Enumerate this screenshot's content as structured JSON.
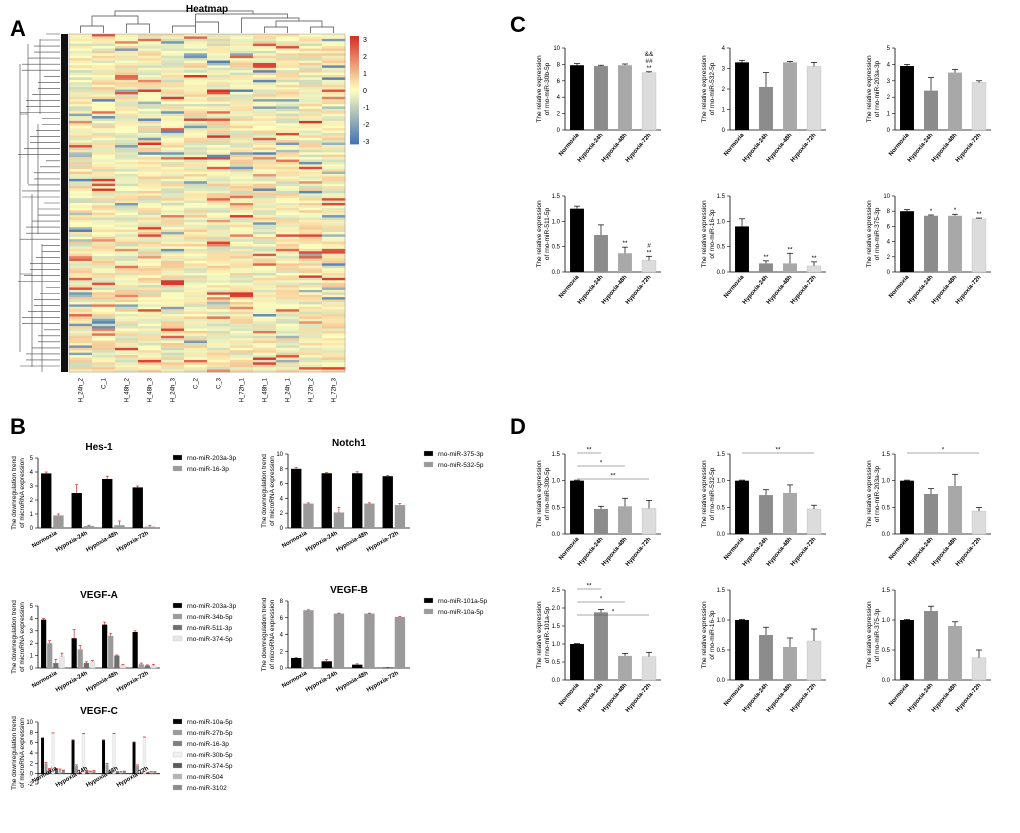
{
  "panel_labels": [
    "A",
    "B",
    "C",
    "D"
  ],
  "x_groups": [
    "Normoxia",
    "Hypoxia-24h",
    "Hypoxia-48h",
    "Hypoxia-72h"
  ],
  "colors": {
    "normoxia": "#000000",
    "h24": "#8c8c8c",
    "h48": "#a8a8a8",
    "h72": "#dcdcdc",
    "error_red": "#d62728",
    "heat_low": "#4575b4",
    "heat_mid": "#ffffbf",
    "heat_high": "#d73027"
  },
  "panel_c_ylabel_prefix": "The relative expression",
  "panel_d_ylabel_prefix": "The relative expression",
  "panel_b_ylabel": [
    "The downregulation trend",
    "of microRNA expression"
  ],
  "chart_data": [
    {
      "id": "A",
      "type": "heatmap",
      "title": "Heatmap",
      "columns": [
        "H_24h_2",
        "C_1",
        "H_48h_2",
        "H_48h_3",
        "H_24h_3",
        "C_2",
        "C_3",
        "H_72h_1",
        "H_48h_1",
        "H_24h_1",
        "H_72h_2",
        "H_72h_3"
      ],
      "colorbar_ticks": [
        "3",
        "2",
        "1",
        "0",
        "-1",
        "-2",
        "-3"
      ],
      "value_range": [
        -3,
        3
      ]
    },
    {
      "id": "B1",
      "type": "bar",
      "title": "Hes-1",
      "ylim": [
        0,
        5
      ],
      "yticks": [
        0,
        1,
        2,
        3,
        4,
        5
      ],
      "categories": [
        "Normoxia",
        "Hypoxia-24h",
        "Hypoxia-48h",
        "Hypoxia-72h"
      ],
      "series": [
        {
          "name": "rno-miR-203a-3p",
          "color": "#000000",
          "values": [
            3.9,
            2.5,
            3.5,
            2.9
          ],
          "errors": [
            0.1,
            0.6,
            0.2,
            0.1
          ]
        },
        {
          "name": "rno-miR-16-3p",
          "color": "#9a9a9a",
          "values": [
            0.9,
            0.15,
            0.2,
            0.1
          ],
          "errors": [
            0.1,
            0.05,
            0.3,
            0.1
          ]
        }
      ]
    },
    {
      "id": "B2",
      "type": "bar",
      "title": "Notch1",
      "ylim": [
        0,
        10
      ],
      "yticks": [
        0,
        2,
        4,
        6,
        8,
        10
      ],
      "categories": [
        "Normoxia",
        "Hypoxia-24h",
        "Hypoxia-48h",
        "Hypoxia-72h"
      ],
      "series": [
        {
          "name": "rno-miR-375-3p",
          "color": "#000000",
          "values": [
            8.0,
            7.4,
            7.4,
            7.0
          ],
          "errors": [
            0.2,
            0.1,
            0.2,
            0.1
          ]
        },
        {
          "name": "rno-miR-532-5p",
          "color": "#9a9a9a",
          "values": [
            3.3,
            2.1,
            3.3,
            3.1
          ],
          "errors": [
            0.1,
            0.7,
            0.1,
            0.2
          ]
        }
      ]
    },
    {
      "id": "B3",
      "type": "bar",
      "title": "VEGF-A",
      "ylim": [
        0,
        5
      ],
      "yticks": [
        0,
        1,
        2,
        3,
        4,
        5
      ],
      "categories": [
        "Normoxia",
        "Hypoxia-24h",
        "Hypoxia-48h",
        "Hypoxia-72h"
      ],
      "series": [
        {
          "name": "rno-miR-203a-3p",
          "color": "#000000",
          "values": [
            3.9,
            2.4,
            3.5,
            2.9
          ],
          "errors": [
            0.1,
            0.7,
            0.2,
            0.1
          ]
        },
        {
          "name": "rno-miR-34b-5p",
          "color": "#9a9a9a",
          "values": [
            2.0,
            1.5,
            2.6,
            0.3
          ],
          "errors": [
            0.2,
            0.3,
            0.2,
            0.1
          ]
        },
        {
          "name": "rno-miR-511-3p",
          "color": "#6e6e6e",
          "values": [
            0.4,
            0.4,
            1.0,
            0.2
          ],
          "errors": [
            0.3,
            0.1,
            0.05,
            0.05
          ]
        },
        {
          "name": "rno-miR-374-5p",
          "color": "#e6e6e6",
          "values": [
            0.9,
            0.5,
            0.2,
            0.2
          ],
          "errors": [
            0.3,
            0.1,
            0.1,
            0.1
          ]
        }
      ]
    },
    {
      "id": "B4",
      "type": "bar",
      "title": "VEGF-B",
      "ylim": [
        0,
        8
      ],
      "yticks": [
        0,
        2,
        4,
        6,
        8
      ],
      "categories": [
        "Normoxia",
        "Hypoxia-24h",
        "Hypoxia-48h",
        "Hypoxia-72h"
      ],
      "series": [
        {
          "name": "rno-miR-101a-5p",
          "color": "#000000",
          "values": [
            1.2,
            0.8,
            0.4,
            0.05
          ],
          "errors": [
            0.05,
            0.2,
            0.1,
            0.02
          ]
        },
        {
          "name": "rno-miR-10a-5p",
          "color": "#9a9a9a",
          "values": [
            6.9,
            6.5,
            6.5,
            6.1
          ],
          "errors": [
            0.05,
            0.05,
            0.05,
            0.05
          ]
        }
      ]
    },
    {
      "id": "B5",
      "type": "bar",
      "title": "VEGF-C",
      "ylim": [
        -2,
        10
      ],
      "yticks": [
        -2,
        0,
        2,
        4,
        6,
        8,
        10
      ],
      "categories": [
        "Normoxia",
        "Hypoxia-24h",
        "Hypoxia-48h",
        "Hypoxia-72h"
      ],
      "series": [
        {
          "name": "rno-miR-10a-5p",
          "color": "#000000",
          "values": [
            6.9,
            6.5,
            6.5,
            6.1
          ],
          "errors": [
            0.05,
            0.05,
            0.05,
            0.05
          ]
        },
        {
          "name": "rno-miR-27b-5p",
          "color": "#9a9a9a",
          "values": [
            2.0,
            1.5,
            1.8,
            1.5
          ],
          "errors": [
            0.2,
            0.2,
            0.2,
            0.2
          ]
        },
        {
          "name": "rno-miR-16-3p",
          "color": "#7d7d7d",
          "values": [
            0.9,
            0.15,
            0.2,
            0.1
          ],
          "errors": [
            0.1,
            0.05,
            0.1,
            0.05
          ]
        },
        {
          "name": "rno-miR-30b-5p",
          "color": "#f0f0f0",
          "values": [
            7.8,
            7.7,
            7.7,
            7.0
          ],
          "errors": [
            0.1,
            0.1,
            0.1,
            0.1
          ]
        },
        {
          "name": "rno-miR-374-5p",
          "color": "#5a5a5a",
          "values": [
            0.9,
            0.5,
            0.3,
            0.2
          ],
          "errors": [
            0.1,
            0.1,
            0.1,
            0.1
          ]
        },
        {
          "name": "rno-miR-504",
          "color": "#b4b4b4",
          "values": [
            0.8,
            0.4,
            0.3,
            0.3
          ],
          "errors": [
            0.1,
            0.1,
            0.1,
            0.1
          ]
        },
        {
          "name": "rno-miR-3102",
          "color": "#8c8c8c",
          "values": [
            0.6,
            0.5,
            0.4,
            0.3
          ],
          "errors": [
            0.1,
            0.1,
            0.1,
            0.1
          ]
        }
      ]
    },
    {
      "id": "C1",
      "type": "bar",
      "ylabel": "of rno-miR-30b-5p",
      "ylim": [
        0,
        10
      ],
      "yticks": [
        0,
        2,
        4,
        6,
        8,
        10
      ],
      "values": [
        7.9,
        7.8,
        7.9,
        7.0
      ],
      "errors": [
        0.2,
        0.1,
        0.15,
        0.1
      ],
      "annotations": [
        "",
        "",
        "",
        "&&\n##\n**"
      ]
    },
    {
      "id": "C2",
      "type": "bar",
      "ylabel": "of rno-miR-532-5p",
      "ylim": [
        0,
        4
      ],
      "yticks": [
        0,
        1,
        2,
        3,
        4
      ],
      "values": [
        3.3,
        2.1,
        3.3,
        3.1
      ],
      "errors": [
        0.1,
        0.7,
        0.05,
        0.2
      ],
      "annotations": [
        "",
        "",
        "",
        ""
      ]
    },
    {
      "id": "C3",
      "type": "bar",
      "ylabel": "of rno-miR-203a-3p",
      "ylim": [
        0,
        5
      ],
      "yticks": [
        0,
        1,
        2,
        3,
        4,
        5
      ],
      "values": [
        3.9,
        2.4,
        3.5,
        2.9
      ],
      "errors": [
        0.1,
        0.8,
        0.2,
        0.1
      ],
      "annotations": [
        "",
        "",
        "",
        ""
      ]
    },
    {
      "id": "C4",
      "type": "bar",
      "ylabel": "of rno-miR-511-5p",
      "ylim": [
        0,
        1.5
      ],
      "yticks": [
        0.0,
        0.5,
        1.0,
        1.5
      ],
      "values": [
        1.25,
        0.73,
        0.37,
        0.23
      ],
      "errors": [
        0.05,
        0.2,
        0.12,
        0.08
      ],
      "annotations": [
        "",
        "",
        "**",
        "#\n**"
      ]
    },
    {
      "id": "C5",
      "type": "bar",
      "ylabel": "of rno-miR-16-3p",
      "ylim": [
        0,
        1.5
      ],
      "yticks": [
        0.0,
        0.5,
        1.0,
        1.5
      ],
      "values": [
        0.9,
        0.17,
        0.17,
        0.12
      ],
      "errors": [
        0.15,
        0.05,
        0.2,
        0.08
      ],
      "annotations": [
        "",
        "**",
        "**",
        "**"
      ]
    },
    {
      "id": "C6",
      "type": "bar",
      "ylabel": "of rno-miR-375-3p",
      "ylim": [
        0,
        10
      ],
      "yticks": [
        0,
        2,
        4,
        6,
        8,
        10
      ],
      "values": [
        8.0,
        7.4,
        7.4,
        7.0
      ],
      "errors": [
        0.2,
        0.1,
        0.2,
        0.1
      ],
      "annotations": [
        "",
        "*",
        "*",
        "**"
      ]
    },
    {
      "id": "D1",
      "type": "bar",
      "ylabel": "of rno-miR-30b-5p",
      "ylim": [
        0,
        1.5
      ],
      "yticks": [
        0.0,
        0.5,
        1.0,
        1.5
      ],
      "values": [
        1.0,
        0.47,
        0.52,
        0.48
      ],
      "errors": [
        0.01,
        0.05,
        0.15,
        0.15
      ],
      "brackets": [
        {
          "from": 0,
          "to": 1,
          "label": "**"
        },
        {
          "from": 0,
          "to": 2,
          "label": "*"
        },
        {
          "from": 0,
          "to": 3,
          "label": "**"
        }
      ]
    },
    {
      "id": "D2",
      "type": "bar",
      "ylabel": "of rno-miR-532-5p",
      "ylim": [
        0,
        1.5
      ],
      "yticks": [
        0.0,
        0.5,
        1.0,
        1.5
      ],
      "values": [
        1.0,
        0.73,
        0.77,
        0.47
      ],
      "errors": [
        0.01,
        0.1,
        0.15,
        0.07
      ],
      "brackets": [
        {
          "from": 0,
          "to": 3,
          "label": "**"
        }
      ]
    },
    {
      "id": "D3",
      "type": "bar",
      "ylabel": "of rno-miR-203a-3p",
      "ylim": [
        0,
        1.5
      ],
      "yticks": [
        0.0,
        0.5,
        1.0,
        1.5
      ],
      "values": [
        1.0,
        0.75,
        0.9,
        0.43
      ],
      "errors": [
        0.01,
        0.1,
        0.22,
        0.07
      ],
      "brackets": [
        {
          "from": 0,
          "to": 3,
          "label": "*"
        }
      ]
    },
    {
      "id": "D4",
      "type": "bar",
      "ylabel": "of rno-miR-101a-5p",
      "ylim": [
        0,
        2.5
      ],
      "yticks": [
        0.0,
        0.5,
        1.0,
        1.5,
        2.0,
        2.5
      ],
      "values": [
        1.0,
        1.88,
        0.67,
        0.65
      ],
      "errors": [
        0.01,
        0.08,
        0.07,
        0.12
      ],
      "brackets": [
        {
          "from": 0,
          "to": 1,
          "label": "**"
        },
        {
          "from": 0,
          "to": 2,
          "label": "*"
        },
        {
          "from": 0,
          "to": 3,
          "label": "*"
        }
      ]
    },
    {
      "id": "D5",
      "type": "bar",
      "ylabel": "of rno-miR-16-3p",
      "ylim": [
        0,
        1.5
      ],
      "yticks": [
        0.0,
        0.5,
        1.0,
        1.5
      ],
      "values": [
        1.0,
        0.75,
        0.55,
        0.65
      ],
      "errors": [
        0.01,
        0.13,
        0.15,
        0.2
      ],
      "brackets": []
    },
    {
      "id": "D6",
      "type": "bar",
      "ylabel": "of rno-miR-375-3p",
      "ylim": [
        0,
        1.5
      ],
      "yticks": [
        0.0,
        0.5,
        1.0,
        1.5
      ],
      "values": [
        1.0,
        1.15,
        0.9,
        0.37
      ],
      "errors": [
        0.01,
        0.08,
        0.07,
        0.13
      ],
      "brackets": []
    }
  ]
}
